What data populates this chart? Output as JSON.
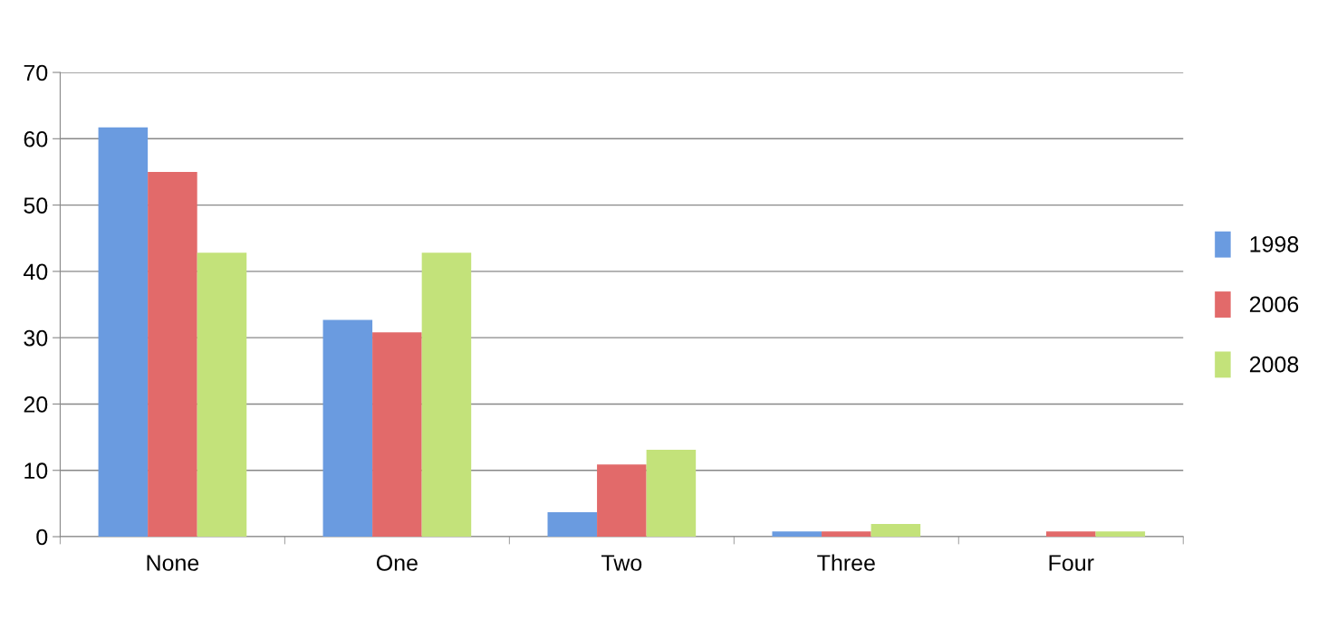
{
  "chart_data": {
    "type": "bar",
    "categories": [
      "None",
      "One",
      "Two",
      "Three",
      "Four"
    ],
    "series": [
      {
        "name": "1998",
        "color": "#6a9be0",
        "values": [
          61.7,
          32.7,
          3.7,
          0.8,
          0
        ]
      },
      {
        "name": "2006",
        "color": "#e26a6a",
        "values": [
          55.0,
          30.8,
          10.9,
          0.8,
          0.8
        ]
      },
      {
        "name": "2008",
        "color": "#c3e27a",
        "values": [
          42.8,
          42.8,
          13.1,
          1.9,
          0.8
        ]
      }
    ],
    "ylim": [
      0,
      70
    ],
    "yticks": [
      0,
      10,
      20,
      30,
      40,
      50,
      60,
      70
    ],
    "grid": "y",
    "legend": "right"
  }
}
